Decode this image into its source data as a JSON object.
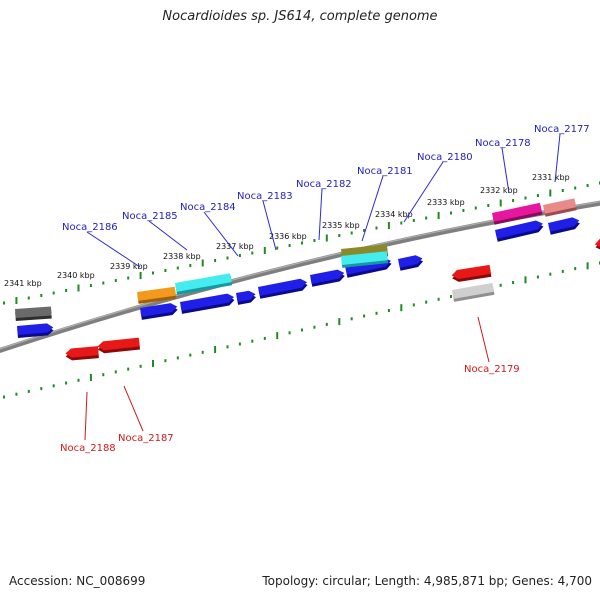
{
  "title": "Nocardioides sp. JS614, complete genome",
  "footer": {
    "accession": "Accession: NC_008699",
    "summary": "Topology: circular; Length: 4,985,871 bp; Genes: 4,700"
  },
  "colors": {
    "backbone": "#7f7f7f",
    "ticks": "#1f8c1f",
    "forward_label": "#1f1fbf",
    "reverse_label": "#d11a1a",
    "leader_forward": "#2a2ad4",
    "leader_reverse": "#d11a1a"
  },
  "ruler": {
    "unit": "kbp",
    "labels": [
      "2341 kbp",
      "2340 kbp",
      "2339 kbp",
      "2338 kbp",
      "2337 kbp",
      "2336 kbp",
      "2335 kbp",
      "2334 kbp",
      "2333 kbp",
      "2332 kbp",
      "2331 kbp"
    ]
  },
  "gene_labels": {
    "forward": [
      "Noca_2186",
      "Noca_2185",
      "Noca_2184",
      "Noca_2183",
      "Noca_2182",
      "Noca_2181",
      "Noca_2180",
      "Noca_2178",
      "Noca_2177"
    ],
    "reverse": [
      "Noca_2188",
      "Noca_2187",
      "Noca_2179"
    ]
  },
  "feature_colors": [
    "blue",
    "red",
    "orange",
    "cyan",
    "olive",
    "magenta",
    "pink",
    "gray",
    "silver"
  ]
}
